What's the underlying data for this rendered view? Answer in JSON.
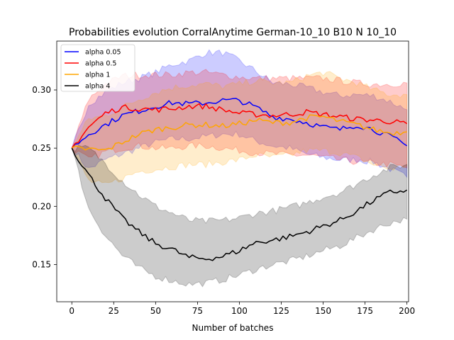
{
  "chart_data": {
    "type": "line",
    "title": "Probabilities evolution CorralAnytime German-10_10 B10 N 10_10",
    "xlabel": "Number of batches",
    "ylabel": "",
    "xlim": [
      -9,
      201
    ],
    "ylim": [
      0.118,
      0.342
    ],
    "xticks": [
      0,
      25,
      50,
      75,
      100,
      125,
      150,
      175,
      200
    ],
    "yticks": [
      0.15,
      0.2,
      0.25,
      0.3
    ],
    "ytick_labels": [
      "0.15",
      "0.20",
      "0.25",
      "0.30"
    ],
    "grid": false,
    "legend_position": "top-left",
    "x": [
      0,
      10,
      20,
      30,
      40,
      50,
      60,
      70,
      80,
      90,
      100,
      110,
      120,
      130,
      140,
      150,
      160,
      170,
      180,
      190,
      200
    ],
    "series": [
      {
        "name": "alpha 0.05",
        "color": "#0000ff",
        "values": [
          0.25,
          0.262,
          0.27,
          0.278,
          0.282,
          0.286,
          0.289,
          0.288,
          0.289,
          0.291,
          0.291,
          0.285,
          0.277,
          0.275,
          0.272,
          0.268,
          0.266,
          0.27,
          0.266,
          0.26,
          0.252
        ],
        "lower": [
          0.25,
          0.232,
          0.24,
          0.245,
          0.25,
          0.255,
          0.258,
          0.258,
          0.26,
          0.262,
          0.262,
          0.256,
          0.252,
          0.25,
          0.245,
          0.242,
          0.24,
          0.24,
          0.238,
          0.232,
          0.225
        ],
        "upper": [
          0.25,
          0.288,
          0.298,
          0.306,
          0.31,
          0.315,
          0.322,
          0.325,
          0.332,
          0.332,
          0.325,
          0.316,
          0.306,
          0.305,
          0.302,
          0.298,
          0.295,
          0.296,
          0.295,
          0.29,
          0.283
        ]
      },
      {
        "name": "alpha 0.5",
        "color": "#ff0000",
        "values": [
          0.25,
          0.268,
          0.28,
          0.285,
          0.284,
          0.283,
          0.284,
          0.286,
          0.286,
          0.283,
          0.28,
          0.279,
          0.278,
          0.279,
          0.281,
          0.279,
          0.277,
          0.275,
          0.274,
          0.273,
          0.271
        ],
        "lower": [
          0.25,
          0.24,
          0.247,
          0.25,
          0.252,
          0.25,
          0.25,
          0.252,
          0.252,
          0.25,
          0.248,
          0.246,
          0.245,
          0.244,
          0.244,
          0.242,
          0.24,
          0.238,
          0.237,
          0.236,
          0.233
        ],
        "upper": [
          0.25,
          0.292,
          0.305,
          0.312,
          0.313,
          0.313,
          0.313,
          0.315,
          0.315,
          0.313,
          0.311,
          0.31,
          0.31,
          0.31,
          0.31,
          0.31,
          0.308,
          0.306,
          0.305,
          0.305,
          0.306
        ]
      },
      {
        "name": "alpha 1",
        "color": "#ffa500",
        "values": [
          0.25,
          0.249,
          0.248,
          0.255,
          0.262,
          0.266,
          0.268,
          0.27,
          0.27,
          0.269,
          0.271,
          0.274,
          0.272,
          0.272,
          0.276,
          0.277,
          0.273,
          0.27,
          0.266,
          0.263,
          0.264
        ],
        "lower": [
          0.25,
          0.222,
          0.218,
          0.224,
          0.23,
          0.232,
          0.234,
          0.236,
          0.236,
          0.238,
          0.24,
          0.244,
          0.242,
          0.244,
          0.248,
          0.248,
          0.246,
          0.242,
          0.236,
          0.232,
          0.235
        ],
        "upper": [
          0.25,
          0.275,
          0.278,
          0.285,
          0.292,
          0.298,
          0.302,
          0.304,
          0.305,
          0.303,
          0.305,
          0.308,
          0.306,
          0.306,
          0.312,
          0.315,
          0.31,
          0.306,
          0.3,
          0.296,
          0.296
        ]
      },
      {
        "name": "alpha 4",
        "color": "#000000",
        "values": [
          0.25,
          0.227,
          0.207,
          0.19,
          0.178,
          0.168,
          0.163,
          0.156,
          0.155,
          0.157,
          0.162,
          0.169,
          0.171,
          0.174,
          0.178,
          0.183,
          0.188,
          0.196,
          0.205,
          0.212,
          0.214
        ],
        "lower": [
          0.25,
          0.198,
          0.175,
          0.158,
          0.147,
          0.14,
          0.136,
          0.133,
          0.134,
          0.137,
          0.141,
          0.146,
          0.15,
          0.153,
          0.157,
          0.162,
          0.166,
          0.173,
          0.18,
          0.186,
          0.189
        ],
        "upper": [
          0.25,
          0.25,
          0.237,
          0.222,
          0.21,
          0.2,
          0.194,
          0.188,
          0.187,
          0.188,
          0.19,
          0.194,
          0.196,
          0.199,
          0.203,
          0.208,
          0.212,
          0.219,
          0.227,
          0.233,
          0.236
        ]
      }
    ]
  }
}
